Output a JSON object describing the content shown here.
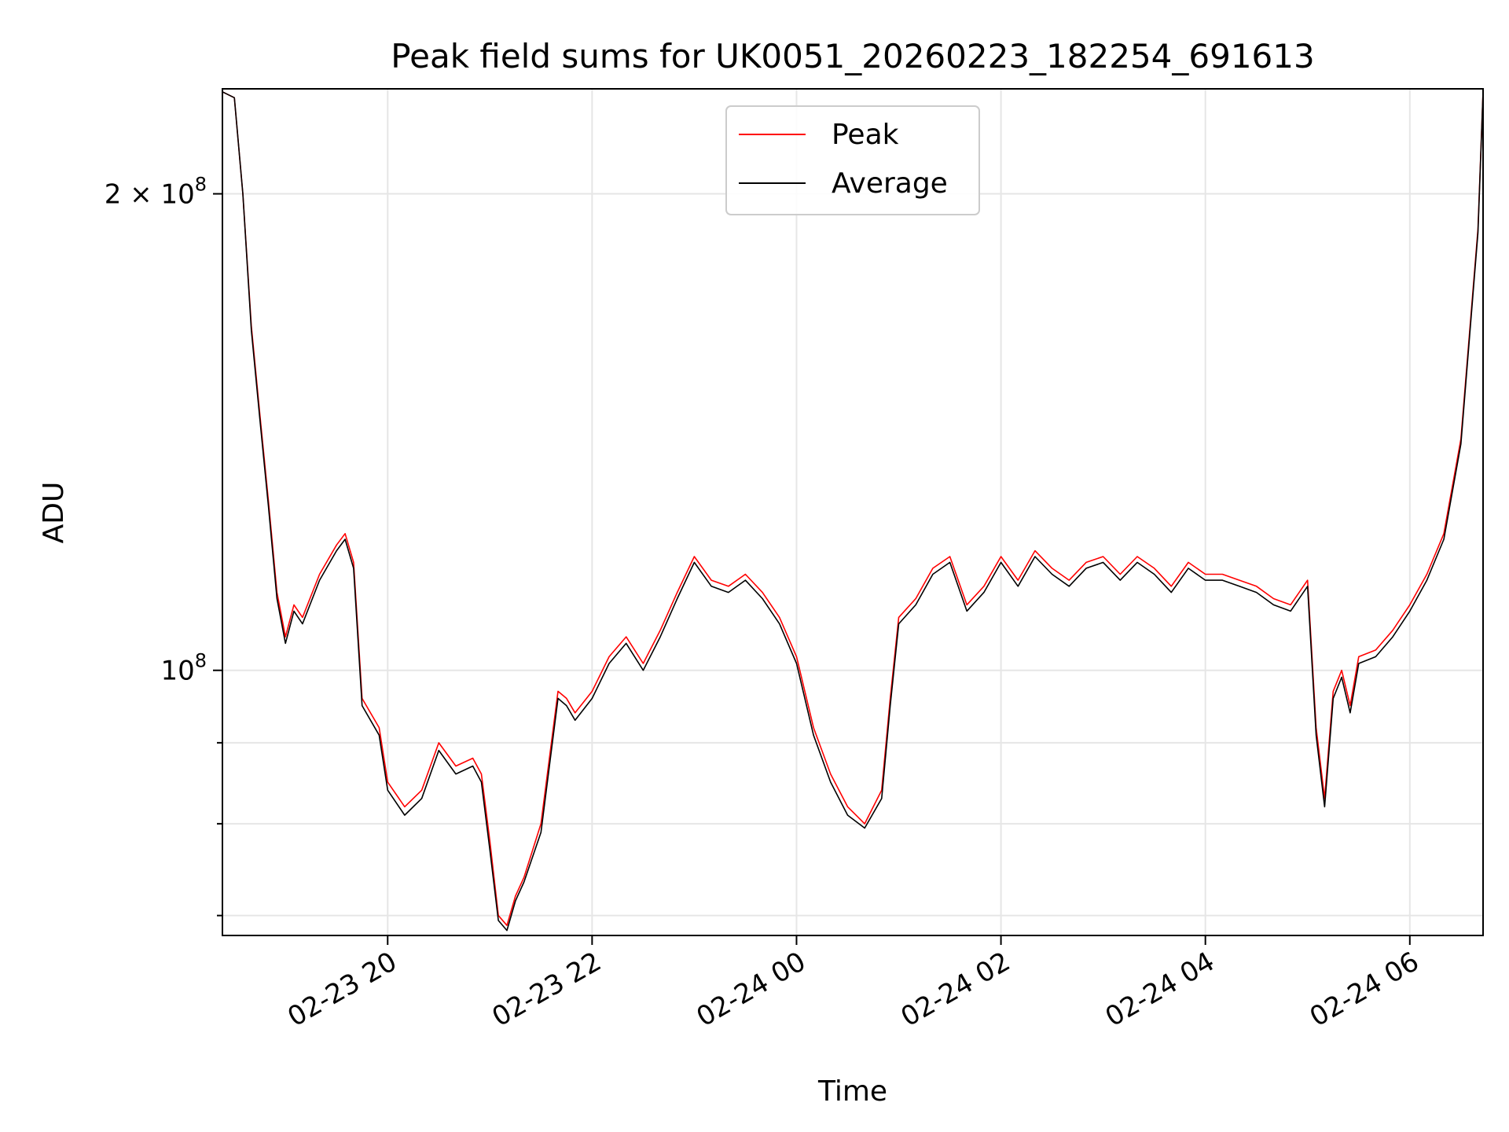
{
  "chart_data": {
    "type": "line",
    "title": "Peak field sums for UK0051_20260223_182254_691613",
    "xlabel": "Time",
    "ylabel": "ADU",
    "y_scale": "log",
    "ylim": [
      68000000,
      233000000
    ],
    "xlim": [
      "2026-02-23 18:23",
      "2026-02-24 06:43"
    ],
    "grid": true,
    "legend_position": "top-center",
    "x_ticks": [
      "02-23 20",
      "02-23 22",
      "02-24 00",
      "02-24 02",
      "02-24 04",
      "02-24 06"
    ],
    "x_tick_values": [
      "2026-02-23 20:00",
      "2026-02-23 22:00",
      "2026-02-24 00:00",
      "2026-02-24 02:00",
      "2026-02-24 04:00",
      "2026-02-24 06:00"
    ],
    "y_major_ticks": [
      {
        "value": 100000000,
        "label_base": "10",
        "label_exp": "8",
        "label_coef": ""
      },
      {
        "value": 200000000,
        "label_base": "10",
        "label_exp": "8",
        "label_coef": "2 × "
      }
    ],
    "y_minor_ticks": [
      70000000,
      80000000,
      90000000
    ],
    "series": [
      {
        "name": "Peak",
        "color": "#ff0000",
        "x": [
          "2026-02-23 18:23",
          "2026-02-23 18:30",
          "2026-02-23 18:35",
          "2026-02-23 18:40",
          "2026-02-23 18:45",
          "2026-02-23 18:50",
          "2026-02-23 18:55",
          "2026-02-23 19:00",
          "2026-02-23 19:05",
          "2026-02-23 19:10",
          "2026-02-23 19:20",
          "2026-02-23 19:30",
          "2026-02-23 19:35",
          "2026-02-23 19:40",
          "2026-02-23 19:45",
          "2026-02-23 19:55",
          "2026-02-23 20:00",
          "2026-02-23 20:10",
          "2026-02-23 20:20",
          "2026-02-23 20:30",
          "2026-02-23 20:40",
          "2026-02-23 20:50",
          "2026-02-23 20:55",
          "2026-02-23 21:00",
          "2026-02-23 21:05",
          "2026-02-23 21:10",
          "2026-02-23 21:15",
          "2026-02-23 21:20",
          "2026-02-23 21:30",
          "2026-02-23 21:40",
          "2026-02-23 21:45",
          "2026-02-23 21:50",
          "2026-02-23 22:00",
          "2026-02-23 22:10",
          "2026-02-23 22:20",
          "2026-02-23 22:30",
          "2026-02-23 22:40",
          "2026-02-23 22:50",
          "2026-02-23 23:00",
          "2026-02-23 23:10",
          "2026-02-23 23:20",
          "2026-02-23 23:30",
          "2026-02-23 23:40",
          "2026-02-23 23:50",
          "2026-02-24 00:00",
          "2026-02-24 00:10",
          "2026-02-24 00:20",
          "2026-02-24 00:30",
          "2026-02-24 00:40",
          "2026-02-24 00:50",
          "2026-02-24 00:55",
          "2026-02-24 01:00",
          "2026-02-24 01:10",
          "2026-02-24 01:20",
          "2026-02-24 01:30",
          "2026-02-24 01:40",
          "2026-02-24 01:50",
          "2026-02-24 02:00",
          "2026-02-24 02:10",
          "2026-02-24 02:20",
          "2026-02-24 02:30",
          "2026-02-24 02:40",
          "2026-02-24 02:50",
          "2026-02-24 03:00",
          "2026-02-24 03:10",
          "2026-02-24 03:20",
          "2026-02-24 03:30",
          "2026-02-24 03:40",
          "2026-02-24 03:50",
          "2026-02-24 04:00",
          "2026-02-24 04:10",
          "2026-02-24 04:20",
          "2026-02-24 04:30",
          "2026-02-24 04:40",
          "2026-02-24 04:50",
          "2026-02-24 05:00",
          "2026-02-24 05:05",
          "2026-02-24 05:10",
          "2026-02-24 05:15",
          "2026-02-24 05:20",
          "2026-02-24 05:25",
          "2026-02-24 05:30",
          "2026-02-24 05:40",
          "2026-02-24 05:50",
          "2026-02-24 06:00",
          "2026-02-24 06:10",
          "2026-02-24 06:20",
          "2026-02-24 06:30",
          "2026-02-24 06:40",
          "2026-02-24 06:43"
        ],
        "values": [
          232000000,
          230000000,
          200000000,
          165000000,
          145000000,
          128000000,
          112000000,
          105000000,
          110000000,
          108000000,
          115000000,
          120000000,
          122000000,
          117000000,
          96000000,
          92000000,
          85000000,
          82000000,
          84000000,
          90000000,
          87000000,
          88000000,
          86000000,
          78000000,
          70000000,
          69000000,
          72000000,
          74000000,
          80000000,
          97000000,
          96000000,
          94000000,
          97000000,
          102000000,
          105000000,
          101000000,
          106000000,
          112000000,
          118000000,
          114000000,
          113000000,
          115000000,
          112000000,
          108000000,
          102000000,
          92000000,
          86000000,
          82000000,
          80000000,
          84000000,
          96000000,
          108000000,
          111000000,
          116000000,
          118000000,
          110000000,
          113000000,
          118000000,
          114000000,
          119000000,
          116000000,
          114000000,
          117000000,
          118000000,
          115000000,
          118000000,
          116000000,
          113000000,
          117000000,
          115000000,
          115000000,
          114000000,
          113000000,
          111000000,
          110000000,
          114000000,
          92000000,
          83000000,
          97000000,
          100000000,
          95000000,
          102000000,
          103000000,
          106000000,
          110000000,
          115000000,
          122000000,
          140000000,
          190000000,
          232000000
        ]
      },
      {
        "name": "Average",
        "color": "#000000",
        "x": [
          "2026-02-23 18:23",
          "2026-02-23 18:30",
          "2026-02-23 18:35",
          "2026-02-23 18:40",
          "2026-02-23 18:45",
          "2026-02-23 18:50",
          "2026-02-23 18:55",
          "2026-02-23 19:00",
          "2026-02-23 19:05",
          "2026-02-23 19:10",
          "2026-02-23 19:20",
          "2026-02-23 19:30",
          "2026-02-23 19:35",
          "2026-02-23 19:40",
          "2026-02-23 19:45",
          "2026-02-23 19:55",
          "2026-02-23 20:00",
          "2026-02-23 20:10",
          "2026-02-23 20:20",
          "2026-02-23 20:30",
          "2026-02-23 20:40",
          "2026-02-23 20:50",
          "2026-02-23 20:55",
          "2026-02-23 21:00",
          "2026-02-23 21:05",
          "2026-02-23 21:10",
          "2026-02-23 21:15",
          "2026-02-23 21:20",
          "2026-02-23 21:30",
          "2026-02-23 21:40",
          "2026-02-23 21:45",
          "2026-02-23 21:50",
          "2026-02-23 22:00",
          "2026-02-23 22:10",
          "2026-02-23 22:20",
          "2026-02-23 22:30",
          "2026-02-23 22:40",
          "2026-02-23 22:50",
          "2026-02-23 23:00",
          "2026-02-23 23:10",
          "2026-02-23 23:20",
          "2026-02-23 23:30",
          "2026-02-23 23:40",
          "2026-02-23 23:50",
          "2026-02-24 00:00",
          "2026-02-24 00:10",
          "2026-02-24 00:20",
          "2026-02-24 00:30",
          "2026-02-24 00:40",
          "2026-02-24 00:50",
          "2026-02-24 00:55",
          "2026-02-24 01:00",
          "2026-02-24 01:10",
          "2026-02-24 01:20",
          "2026-02-24 01:30",
          "2026-02-24 01:40",
          "2026-02-24 01:50",
          "2026-02-24 02:00",
          "2026-02-24 02:10",
          "2026-02-24 02:20",
          "2026-02-24 02:30",
          "2026-02-24 02:40",
          "2026-02-24 02:50",
          "2026-02-24 03:00",
          "2026-02-24 03:10",
          "2026-02-24 03:20",
          "2026-02-24 03:30",
          "2026-02-24 03:40",
          "2026-02-24 03:50",
          "2026-02-24 04:00",
          "2026-02-24 04:10",
          "2026-02-24 04:20",
          "2026-02-24 04:30",
          "2026-02-24 04:40",
          "2026-02-24 04:50",
          "2026-02-24 05:00",
          "2026-02-24 05:05",
          "2026-02-24 05:10",
          "2026-02-24 05:15",
          "2026-02-24 05:20",
          "2026-02-24 05:25",
          "2026-02-24 05:30",
          "2026-02-24 05:40",
          "2026-02-24 05:50",
          "2026-02-24 06:00",
          "2026-02-24 06:10",
          "2026-02-24 06:20",
          "2026-02-24 06:30",
          "2026-02-24 06:40",
          "2026-02-24 06:43"
        ],
        "values": [
          232000000,
          230000000,
          200000000,
          164000000,
          144000000,
          127000000,
          111000000,
          104000000,
          109000000,
          107000000,
          114000000,
          119000000,
          121000000,
          116000000,
          95000000,
          91000000,
          84000000,
          81000000,
          83000000,
          89000000,
          86000000,
          87000000,
          85000000,
          77000000,
          69500000,
          68500000,
          71500000,
          73500000,
          79000000,
          96000000,
          95000000,
          93000000,
          96000000,
          101000000,
          104000000,
          100000000,
          105000000,
          111000000,
          117000000,
          113000000,
          112000000,
          114000000,
          111000000,
          107000000,
          101000000,
          91000000,
          85000000,
          81000000,
          79500000,
          83000000,
          95000000,
          107000000,
          110000000,
          115000000,
          117000000,
          109000000,
          112000000,
          117000000,
          113000000,
          118000000,
          115000000,
          113000000,
          116000000,
          117000000,
          114000000,
          117000000,
          115000000,
          112000000,
          116000000,
          114000000,
          114000000,
          113000000,
          112000000,
          110000000,
          109000000,
          113000000,
          91000000,
          82000000,
          96000000,
          99000000,
          94000000,
          101000000,
          102000000,
          105000000,
          109000000,
          114000000,
          121000000,
          139000000,
          189000000,
          232000000
        ]
      }
    ]
  }
}
